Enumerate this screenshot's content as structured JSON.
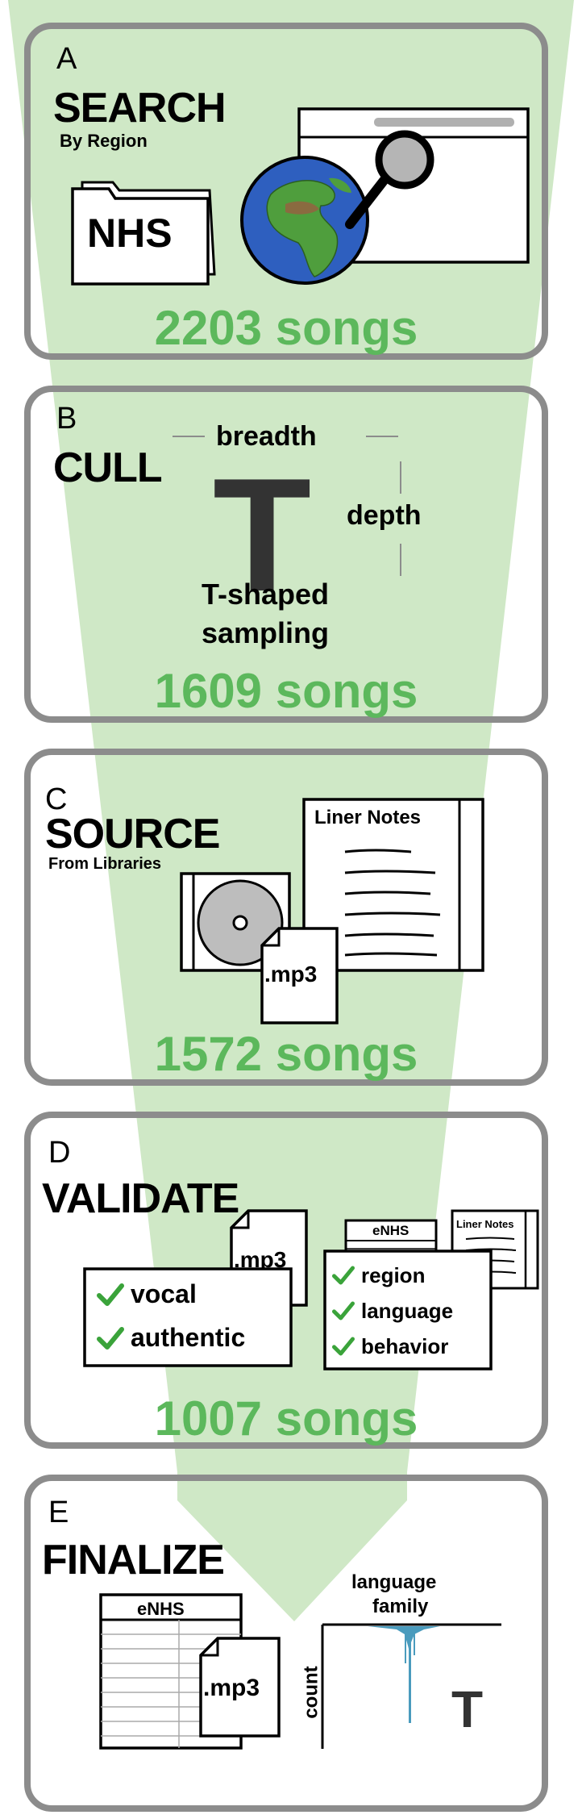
{
  "colors": {
    "funnel": "#cfe8c6",
    "count": "#5cb85c",
    "check": "#3aa33a",
    "border": "#8c8c8c",
    "histogram": "#4a9bbd"
  },
  "icons": [
    "folder-icon",
    "globe-icon",
    "browser-window-icon",
    "magnifier-icon",
    "cd-case-icon",
    "mp3-file-icon",
    "liner-notes-icon",
    "checkmark-icon",
    "table-icon",
    "histogram-icon"
  ],
  "panels": {
    "search": {
      "letter": "A",
      "title": "SEARCH",
      "subtitle": "By Region",
      "folder_label": "NHS",
      "count": "2203 songs"
    },
    "cull": {
      "letter": "B",
      "title": "CULL",
      "breadth": "breadth",
      "depth": "depth",
      "t_letter": "T",
      "caption_line1": "T-shaped",
      "caption_line2": "sampling",
      "count": "1609 songs"
    },
    "source": {
      "letter": "C",
      "title": "SOURCE",
      "subtitle": "From Libraries",
      "notes_title": "Liner Notes",
      "file_label": ".mp3",
      "count": "1572 songs"
    },
    "validate": {
      "letter": "D",
      "title": "VALIDATE",
      "file_label": ".mp3",
      "checks_left": [
        "vocal",
        "authentic"
      ],
      "enhs_label": "eNHS",
      "notes_title": "Liner Notes",
      "checks_right": [
        "region",
        "language",
        "behavior"
      ],
      "count": "1007 songs"
    },
    "finalize": {
      "letter": "E",
      "title": "FINALIZE",
      "table_label": "eNHS",
      "file_label": ".mp3",
      "chart_xlabel_line1": "language",
      "chart_xlabel_line2": "family",
      "chart_ylabel": "count",
      "chart_marker": "T"
    }
  }
}
